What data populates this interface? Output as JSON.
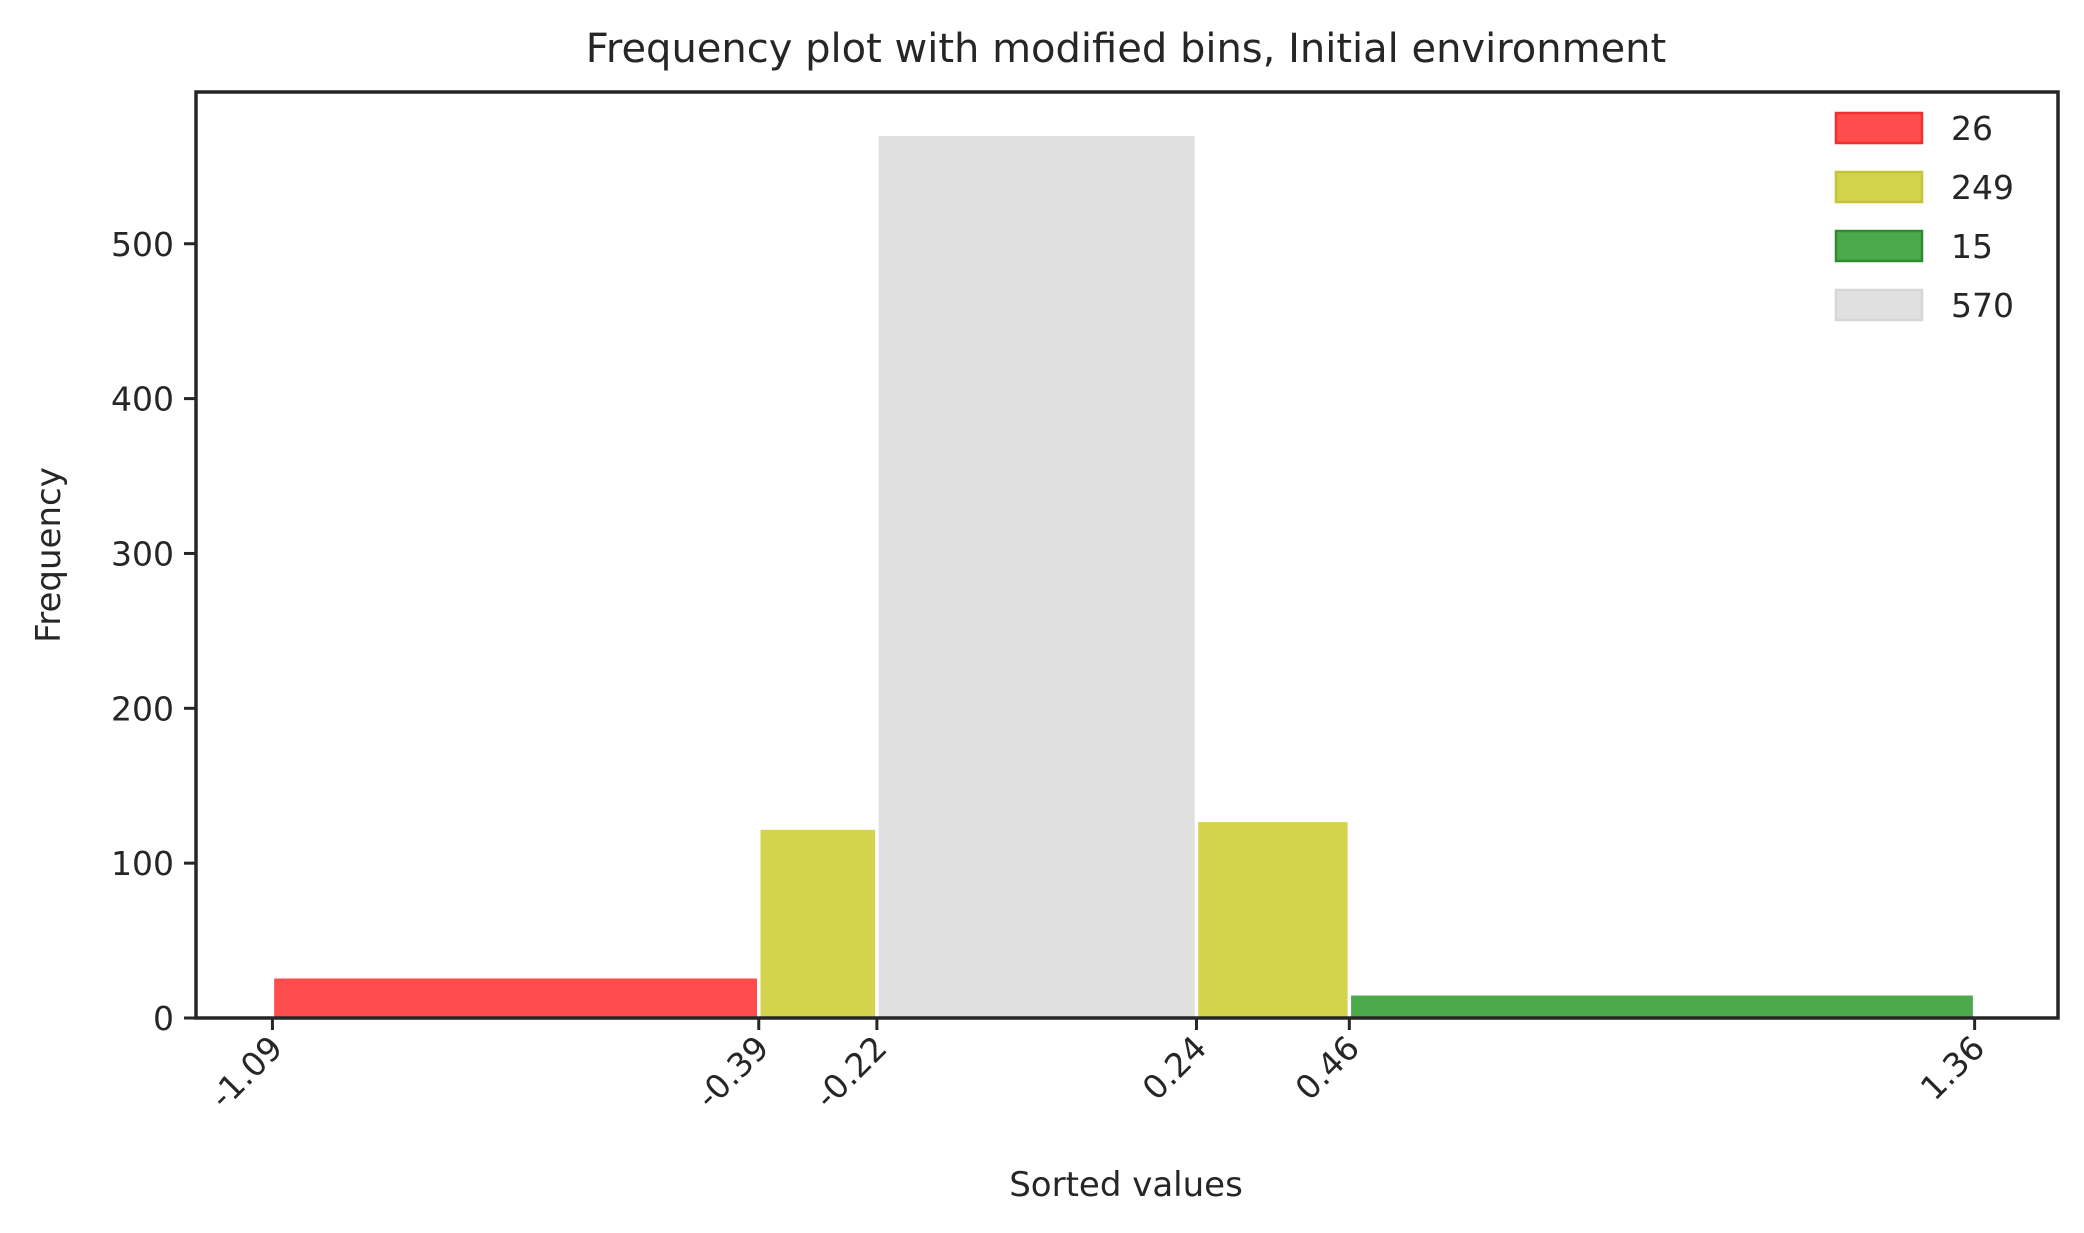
{
  "chart_data": {
    "type": "bar",
    "title": "Frequency plot with modified bins, Initial environment",
    "xlabel": "Sorted values",
    "ylabel": "Frequency",
    "xlim": [
      -1.2,
      1.48
    ],
    "ylim": [
      0,
      598
    ],
    "grid": false,
    "legend_position": "top-right",
    "x_ticks": [
      -1.09,
      -0.39,
      -0.22,
      0.24,
      0.46,
      1.36
    ],
    "x_tick_labels": [
      "-1.09",
      "-0.39",
      "-0.22",
      "0.24",
      "0.46",
      "1.36"
    ],
    "y_ticks": [
      0,
      100,
      200,
      300,
      400,
      500
    ],
    "y_tick_labels": [
      "0",
      "100",
      "200",
      "300",
      "400",
      "500"
    ],
    "series": [
      {
        "name": "26",
        "color": "#ff4d4d",
        "edge": "#f03030",
        "bins": [
          {
            "x0": -1.09,
            "x1": -0.39,
            "value": 26
          }
        ]
      },
      {
        "name": "249",
        "color": "#d4d44c",
        "edge": "#c4c43a",
        "bins": [
          {
            "x0": -0.39,
            "x1": -0.22,
            "value": 122
          },
          {
            "x0": 0.24,
            "x1": 0.46,
            "value": 127
          }
        ]
      },
      {
        "name": "15",
        "color": "#4caa4c",
        "edge": "#2e8b2e",
        "bins": [
          {
            "x0": 0.46,
            "x1": 1.36,
            "value": 15
          }
        ]
      },
      {
        "name": "570",
        "color": "#e0e0e0",
        "edge": "#d6d6d6",
        "bins": [
          {
            "x0": -0.22,
            "x1": 0.24,
            "value": 570
          }
        ]
      }
    ]
  }
}
